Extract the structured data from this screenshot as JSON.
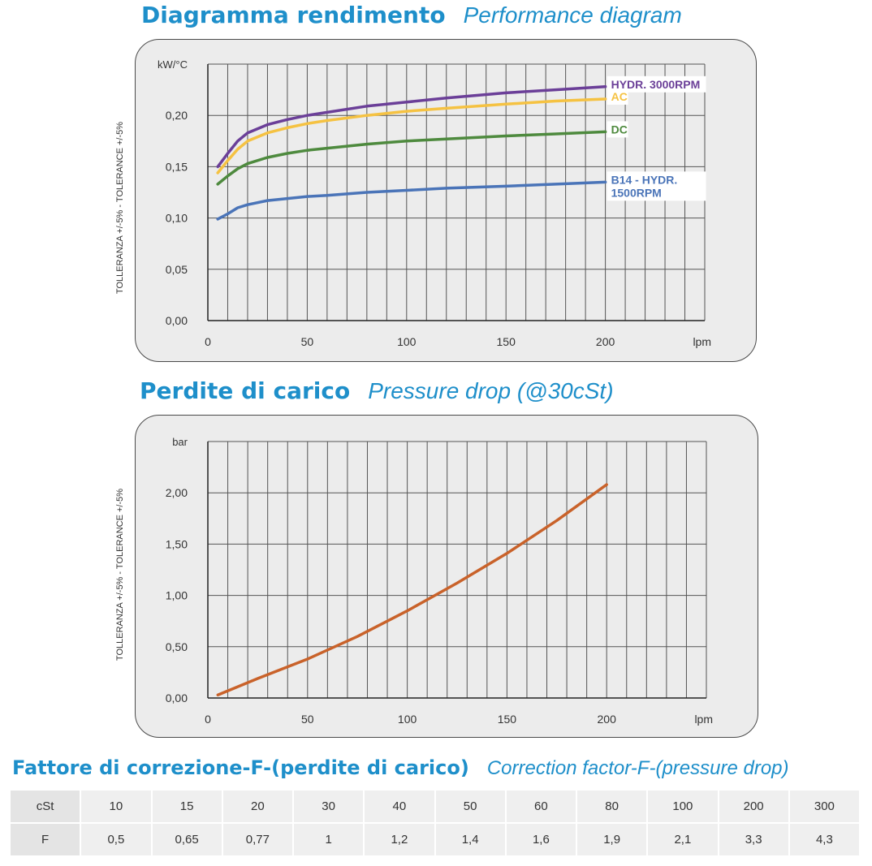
{
  "headings": {
    "perf_it": "Diagramma rendimento",
    "perf_en": "Performance diagram",
    "drop_it": "Perdite di carico",
    "drop_en": "Pressure drop  (@30cSt)",
    "corr_it": "Fattore di correzione-F-(perdite di carico)",
    "corr_en": "Correction factor-F-(pressure drop)"
  },
  "tolerance_label": "TOLLERANZA +/-5% - TOLERANCE +/-5%",
  "chart_data": [
    {
      "type": "line",
      "title": "Performance diagram",
      "ylabel": "kW/°C",
      "xlabel": "lpm",
      "x_ticks": [
        "0",
        "50",
        "100",
        "150",
        "200"
      ],
      "y_ticks": [
        "0,00",
        "0,05",
        "0,10",
        "0,15",
        "0,20"
      ],
      "xlim": [
        0,
        250
      ],
      "ylim": [
        0,
        0.25
      ],
      "grid": true,
      "x": [
        5,
        10,
        15,
        20,
        30,
        40,
        50,
        60,
        80,
        100,
        120,
        150,
        175,
        200
      ],
      "series": [
        {
          "name": "HYDR. 3000RPM",
          "color": "#6b3f98",
          "values": [
            0.15,
            0.163,
            0.175,
            0.183,
            0.191,
            0.196,
            0.2,
            0.203,
            0.209,
            0.213,
            0.217,
            0.222,
            0.225,
            0.228
          ]
        },
        {
          "name": "AC",
          "color": "#f5c242",
          "values": [
            0.144,
            0.156,
            0.167,
            0.175,
            0.183,
            0.188,
            0.192,
            0.195,
            0.2,
            0.204,
            0.207,
            0.211,
            0.214,
            0.216
          ]
        },
        {
          "name": "DC",
          "color": "#4e8a3e",
          "values": [
            0.133,
            0.141,
            0.148,
            0.153,
            0.159,
            0.163,
            0.166,
            0.168,
            0.172,
            0.175,
            0.177,
            0.18,
            0.182,
            0.184
          ]
        },
        {
          "name": "B14 - HYDR.",
          "name_line2": "1500RPM",
          "color": "#4a74b8",
          "values": [
            0.099,
            0.104,
            0.11,
            0.113,
            0.117,
            0.119,
            0.121,
            0.122,
            0.125,
            0.127,
            0.129,
            0.131,
            0.133,
            0.135
          ]
        }
      ]
    },
    {
      "type": "line",
      "title": "Pressure drop (@30cSt)",
      "ylabel": "bar",
      "xlabel": "lpm",
      "x_ticks": [
        "0",
        "50",
        "100",
        "150",
        "200"
      ],
      "y_ticks": [
        "0,00",
        "0,50",
        "1,00",
        "1,50",
        "2,00"
      ],
      "xlim": [
        0,
        250
      ],
      "ylim": [
        0,
        2.5
      ],
      "grid": true,
      "x": [
        5,
        25,
        50,
        75,
        100,
        125,
        150,
        175,
        200
      ],
      "series": [
        {
          "color": "#c9622a",
          "values": [
            0.03,
            0.19,
            0.38,
            0.6,
            0.85,
            1.12,
            1.41,
            1.73,
            2.08
          ]
        }
      ]
    }
  ],
  "table": {
    "header_label": "cSt",
    "row_label": "F",
    "cst": [
      "10",
      "15",
      "20",
      "30",
      "40",
      "50",
      "60",
      "80",
      "100",
      "200",
      "300"
    ],
    "f": [
      "0,5",
      "0,65",
      "0,77",
      "1",
      "1,2",
      "1,4",
      "1,6",
      "1,9",
      "2,1",
      "3,3",
      "4,3"
    ]
  }
}
